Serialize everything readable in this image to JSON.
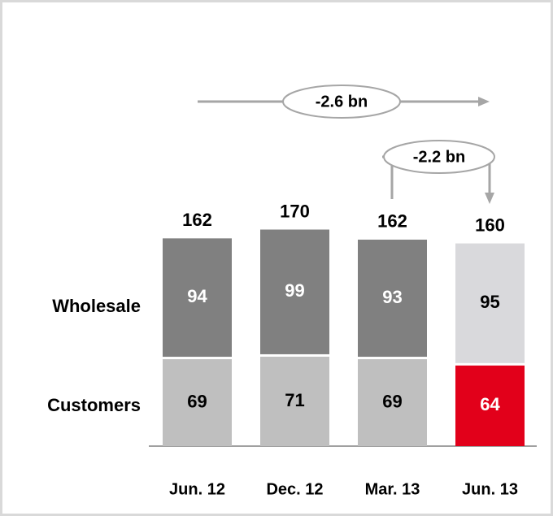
{
  "chart_data": {
    "type": "stacked_bar",
    "categories": [
      "Jun. 12",
      "Dec. 12",
      "Mar. 13",
      "Jun. 13"
    ],
    "series": [
      {
        "name": "Customers",
        "colors": [
          "#bfbfbf",
          "#bfbfbf",
          "#bfbfbf",
          "#e2001a"
        ],
        "values": [
          69,
          71,
          69,
          64
        ]
      },
      {
        "name": "Wholesale",
        "colors": [
          "#808080",
          "#808080",
          "#808080",
          "#d9d9dc"
        ],
        "values": [
          94,
          99,
          93,
          95
        ]
      }
    ],
    "totals": [
      162,
      170,
      162,
      160
    ],
    "annotations": [
      "-2.6 bn",
      "-2.2 bn"
    ]
  }
}
